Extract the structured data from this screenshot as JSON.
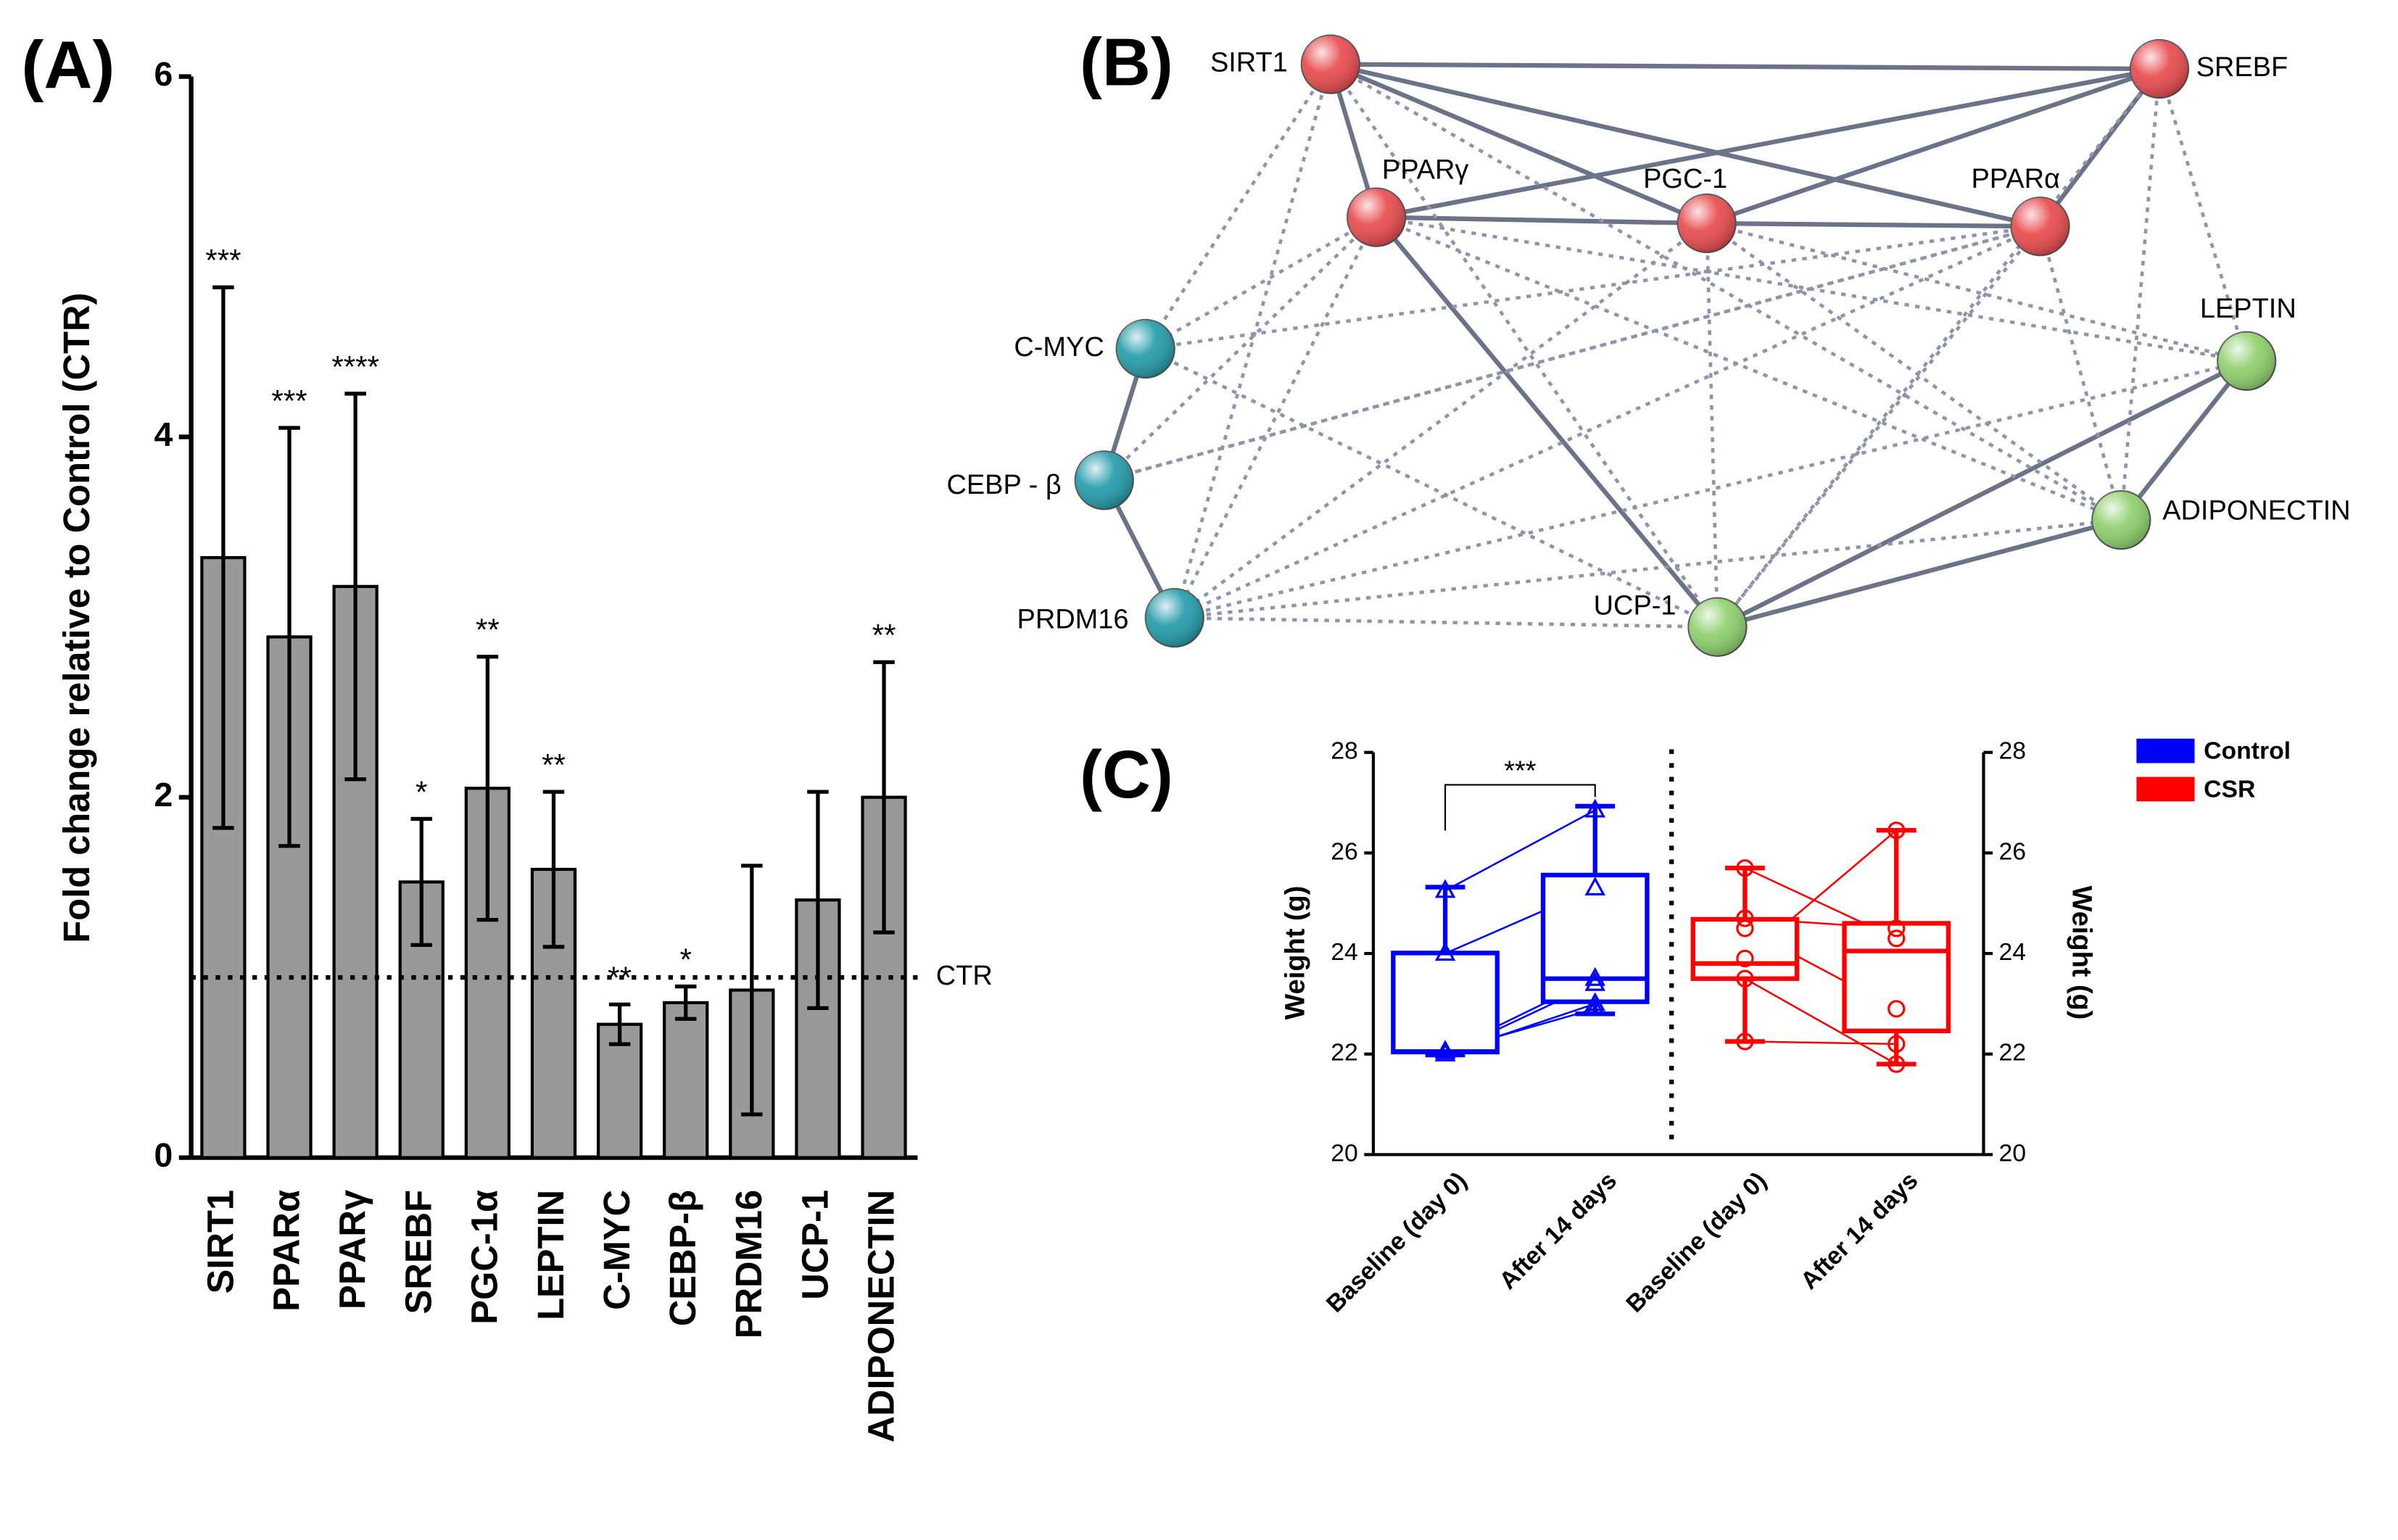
{
  "chart_data": [
    {
      "type": "bar",
      "panel": "(A)",
      "ylabel": "Fold change relative to Control (CTR)",
      "categories": [
        "SIRT1",
        "PPARα",
        "PPARγ",
        "SREBF",
        "PGC-1α",
        "LEPTIN",
        "C-MYC",
        "CEBP-β",
        "PRDM16",
        "UCP-1",
        "ADIPONECTIN"
      ],
      "values": [
        3.33,
        2.89,
        3.17,
        1.53,
        2.05,
        1.6,
        0.74,
        0.86,
        0.93,
        1.43,
        2.0
      ],
      "errors": [
        1.5,
        1.16,
        1.07,
        0.35,
        0.73,
        0.43,
        0.11,
        0.09,
        0.69,
        0.6,
        0.75
      ],
      "significance": [
        "***",
        "***",
        "****",
        "*",
        "**",
        "**",
        "**",
        "*",
        null,
        null,
        "**"
      ],
      "color": "#999999",
      "ylim": [
        0,
        6
      ],
      "yticks": [
        0,
        2,
        4,
        6
      ],
      "reference_line": {
        "value": 1,
        "label": "CTR"
      }
    },
    {
      "type": "box",
      "panel": "(C)",
      "ylabel": "Weight (g)",
      "y2label": "Weight (g)",
      "categories": [
        "Baseline (day 0)",
        "After 14 days",
        "Baseline (day 0)",
        "After 14 days"
      ],
      "ylim": [
        20,
        28
      ],
      "yticks": [
        20,
        22,
        24,
        26,
        28
      ],
      "y2lim": [
        20,
        28
      ],
      "y2ticks": [
        20,
        22,
        24,
        26,
        28
      ],
      "significance": "***",
      "legend": "top-right",
      "series": [
        {
          "name": "Control",
          "color": "#0000ff",
          "marker": "triangle",
          "boxes": [
            {
              "min": 21.98,
              "q1": 22.04,
              "median": 22.05,
              "q3": 24.01,
              "max": 25.32
            },
            {
              "min": 22.8,
              "q1": 23.04,
              "median": 23.5,
              "q3": 25.56,
              "max": 26.93
            }
          ],
          "points": [
            [
              25.25,
              24.0,
              22.05,
              22.0,
              22.0,
              22.05
            ],
            [
              26.85,
              25.3,
              23.5,
              23.4,
              23.0,
              22.9
            ]
          ]
        },
        {
          "name": "CSR",
          "color": "#ff0000",
          "marker": "circle",
          "boxes": [
            {
              "min": 22.25,
              "q1": 23.5,
              "median": 23.8,
              "q3": 24.68,
              "max": 25.7
            },
            {
              "min": 21.8,
              "q1": 22.46,
              "median": 24.05,
              "q3": 24.6,
              "max": 26.45
            }
          ],
          "points": [
            [
              25.7,
              24.7,
              24.5,
              23.9,
              23.5,
              22.25
            ],
            [
              24.3,
              24.5,
              22.9,
              26.45,
              21.8,
              22.2
            ]
          ]
        }
      ]
    }
  ],
  "network": {
    "panel": "(B)",
    "nodes": [
      {
        "label": "SIRT1",
        "color": "#e8474a"
      },
      {
        "label": "SREBF",
        "color": "#e8474a"
      },
      {
        "label": "PPARγ",
        "color": "#e8474a"
      },
      {
        "label": "PGC-1",
        "color": "#e8474a"
      },
      {
        "label": "PPARα",
        "color": "#e8474a"
      },
      {
        "label": "C-MYC",
        "color": "#1f9aa8"
      },
      {
        "label": "LEPTIN",
        "color": "#8ccf6a"
      },
      {
        "label": "CEBP - β",
        "color": "#1f9aa8"
      },
      {
        "label": "ADIPONECTIN",
        "color": "#8ccf6a"
      },
      {
        "label": "PRDM16",
        "color": "#1f9aa8"
      },
      {
        "label": "UCP-1",
        "color": "#8ccf6a"
      }
    ]
  }
}
